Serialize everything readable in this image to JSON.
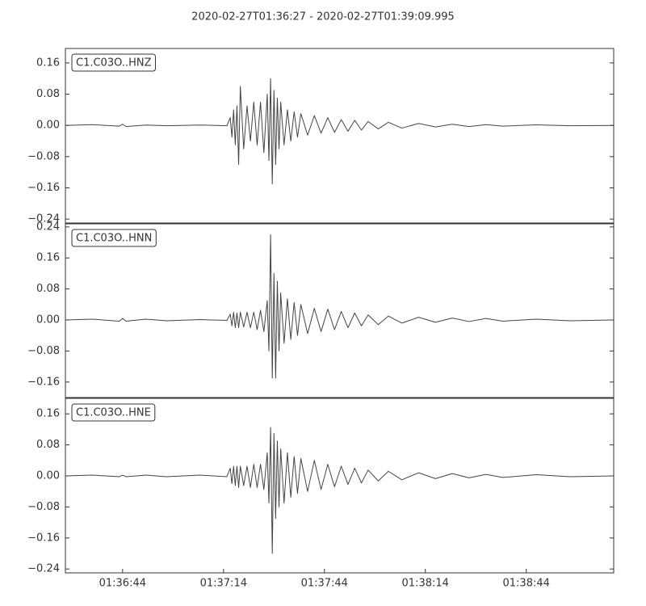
{
  "chart_data": [
    {
      "type": "line",
      "title": "2020-02-27T01:36:27  -  2020-02-27T01:39:09.995",
      "label": "C1.C03O..HNZ",
      "color": "#444444",
      "x": [
        0,
        8,
        16,
        17,
        18,
        24,
        30,
        40,
        48,
        49,
        49.5,
        50,
        50.5,
        51,
        51.5,
        52,
        53,
        54,
        55,
        56,
        57,
        58,
        59,
        60,
        60.5,
        61,
        61.5,
        62,
        62.5,
        63,
        63.5,
        64,
        65,
        66,
        67,
        68,
        69,
        70,
        72,
        74,
        76,
        78,
        80,
        82,
        84,
        86,
        88,
        90,
        93,
        96,
        100,
        105,
        110,
        115,
        120,
        125,
        130,
        140,
        150,
        163
      ],
      "values": [
        0,
        0.002,
        -0.002,
        0.003,
        -0.003,
        0.001,
        -0.001,
        0.001,
        -0.001,
        0.02,
        -0.03,
        0.04,
        -0.05,
        0.05,
        -0.1,
        0.1,
        -0.06,
        0.05,
        -0.04,
        0.06,
        -0.05,
        0.06,
        -0.07,
        0.08,
        -0.09,
        0.12,
        -0.15,
        0.09,
        -0.1,
        0.07,
        -0.06,
        0.06,
        -0.05,
        0.04,
        -0.04,
        0.035,
        -0.03,
        0.03,
        -0.025,
        0.025,
        -0.02,
        0.02,
        -0.018,
        0.015,
        -0.015,
        0.013,
        -0.012,
        0.01,
        -0.009,
        0.008,
        -0.007,
        0.005,
        -0.004,
        0.003,
        -0.003,
        0.002,
        -0.002,
        0.0015,
        -0.001,
        0
      ],
      "xlim": [
        0,
        162.995
      ],
      "ylim": [
        -0.25,
        0.197
      ],
      "yticks": [
        0.16,
        0.08,
        {
          "value": 0,
          "label": "0.00"
        },
        {
          "value": -0.08,
          "label": "−0.08"
        },
        {
          "value": -0.16,
          "label": "−0.16"
        },
        {
          "value": -0.24,
          "label": "−0.24"
        }
      ]
    },
    {
      "type": "line",
      "label": "C1.C03O..HNN",
      "color": "#444444",
      "x": [
        0,
        8,
        16,
        17,
        18,
        24,
        30,
        40,
        48,
        49,
        49.5,
        50,
        50.5,
        51,
        51.5,
        52,
        53,
        54,
        55,
        56,
        57,
        58,
        59,
        60,
        60.5,
        61,
        61.5,
        62,
        62.5,
        63,
        63.5,
        64,
        65,
        66,
        67,
        68,
        69,
        70,
        72,
        74,
        76,
        78,
        80,
        82,
        84,
        86,
        88,
        90,
        93,
        96,
        100,
        105,
        110,
        115,
        120,
        125,
        130,
        140,
        150,
        163
      ],
      "values": [
        0,
        0.002,
        -0.003,
        0.004,
        -0.003,
        0.002,
        -0.002,
        0.001,
        -0.001,
        0.015,
        -0.015,
        0.02,
        -0.02,
        0.018,
        -0.02,
        0.02,
        -0.018,
        0.02,
        -0.02,
        0.02,
        -0.025,
        0.025,
        -0.03,
        0.05,
        -0.08,
        0.22,
        -0.15,
        0.12,
        -0.15,
        0.1,
        -0.08,
        0.07,
        -0.06,
        0.055,
        -0.05,
        0.045,
        -0.04,
        0.04,
        -0.035,
        0.03,
        -0.03,
        0.028,
        -0.025,
        0.022,
        -0.02,
        0.018,
        -0.015,
        0.013,
        -0.012,
        0.01,
        -0.008,
        0.007,
        -0.006,
        0.005,
        -0.004,
        0.004,
        -0.003,
        0.002,
        -0.002,
        0
      ],
      "xlim": [
        0,
        162.995
      ],
      "ylim": [
        -0.2,
        0.248
      ],
      "yticks": [
        0.24,
        0.16,
        0.08,
        {
          "value": 0,
          "label": "0.00"
        },
        {
          "value": -0.08,
          "label": "−0.08"
        },
        {
          "value": -0.16,
          "label": "−0.16"
        }
      ]
    },
    {
      "type": "line",
      "label": "C1.C03O..HNE",
      "color": "#444444",
      "x": [
        0,
        8,
        16,
        17,
        18,
        24,
        30,
        40,
        48,
        49,
        49.5,
        50,
        50.5,
        51,
        51.5,
        52,
        53,
        54,
        55,
        56,
        57,
        58,
        59,
        60,
        60.5,
        61,
        61.5,
        62,
        62.5,
        63,
        63.5,
        64,
        65,
        66,
        67,
        68,
        69,
        70,
        72,
        74,
        76,
        78,
        80,
        82,
        84,
        86,
        88,
        90,
        93,
        96,
        100,
        105,
        110,
        115,
        120,
        125,
        130,
        140,
        150,
        163
      ],
      "values": [
        0,
        0.002,
        -0.002,
        0.002,
        -0.002,
        0.002,
        -0.002,
        0.002,
        -0.002,
        0.02,
        -0.02,
        0.025,
        -0.025,
        0.025,
        -0.03,
        0.025,
        -0.025,
        0.025,
        -0.03,
        0.03,
        -0.03,
        0.03,
        -0.035,
        0.06,
        -0.07,
        0.125,
        -0.2,
        0.11,
        -0.11,
        0.09,
        -0.08,
        0.07,
        -0.07,
        0.06,
        -0.055,
        0.05,
        -0.045,
        0.045,
        -0.04,
        0.04,
        -0.035,
        0.03,
        -0.028,
        0.025,
        -0.022,
        0.02,
        -0.018,
        0.015,
        -0.013,
        0.012,
        -0.01,
        0.008,
        -0.007,
        0.006,
        -0.005,
        0.004,
        -0.004,
        0.003,
        -0.002,
        0
      ],
      "xlim": [
        0,
        162.995
      ],
      "ylim": [
        -0.25,
        0.2
      ],
      "yticks": [
        0.16,
        0.08,
        {
          "value": 0,
          "label": "0.00"
        },
        {
          "value": -0.08,
          "label": "−0.08"
        },
        {
          "value": -0.16,
          "label": "−0.16"
        },
        {
          "value": -0.24,
          "label": "−0.24"
        }
      ],
      "xticks": [
        {
          "value": 17,
          "label": "01:36:44"
        },
        {
          "value": 47,
          "label": "01:37:14"
        },
        {
          "value": 77,
          "label": "01:37:44"
        },
        {
          "value": 107,
          "label": "01:38:14"
        },
        {
          "value": 137,
          "label": "01:38:44"
        }
      ]
    }
  ]
}
